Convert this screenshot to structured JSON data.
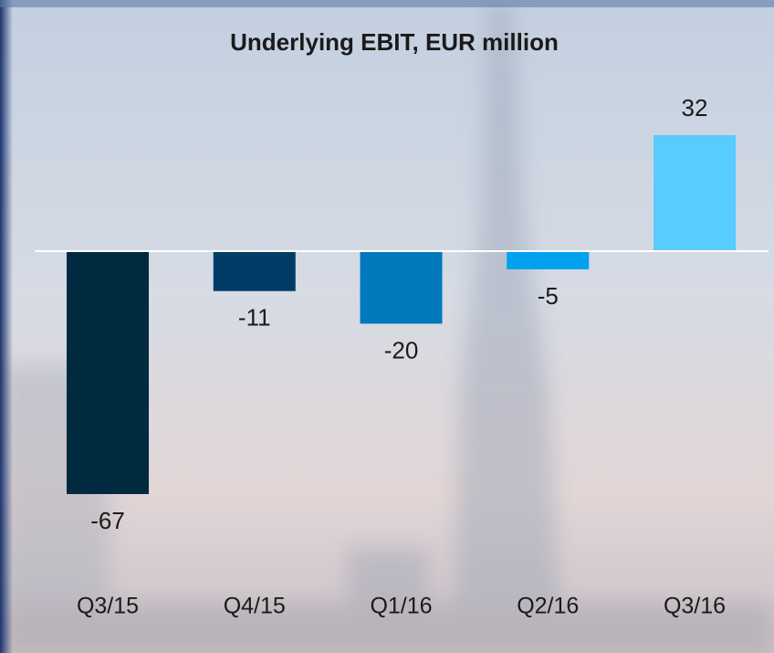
{
  "chart_data": {
    "type": "bar",
    "title": "Underlying EBIT, EUR million",
    "categories": [
      "Q3/15",
      "Q4/15",
      "Q1/16",
      "Q2/16",
      "Q3/16"
    ],
    "values": [
      -67,
      -11,
      -20,
      -5,
      32
    ],
    "colors": [
      "#002a40",
      "#003d66",
      "#0079bd",
      "#00a2ee",
      "#58cbff"
    ]
  }
}
